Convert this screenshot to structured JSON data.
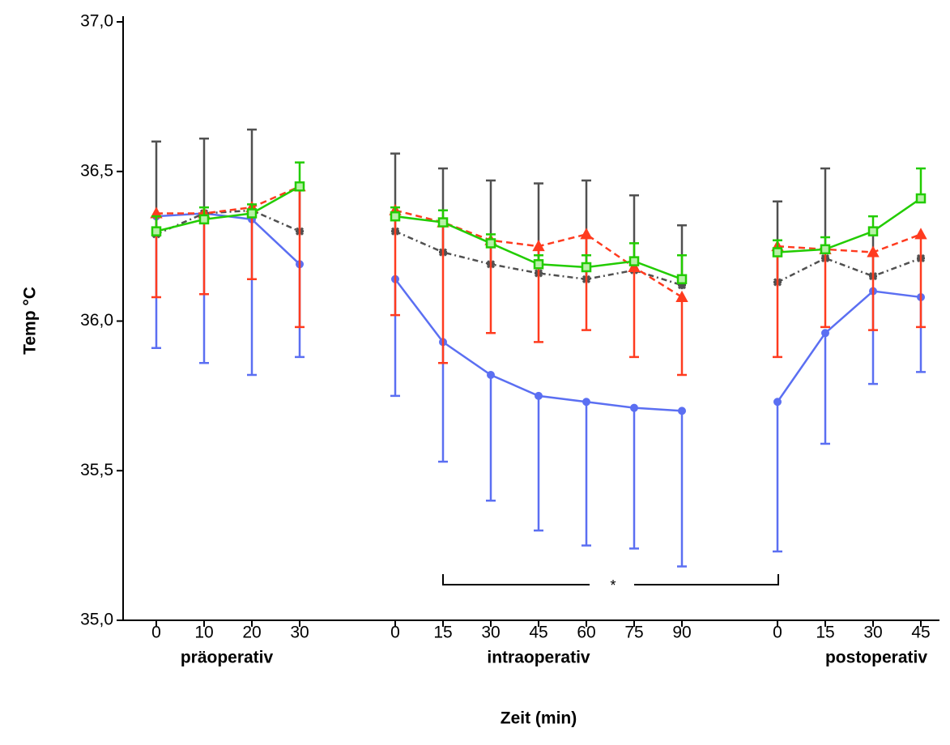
{
  "chart_data": {
    "type": "line",
    "y_label": "Temp °C",
    "x_label": "Zeit (min)",
    "group_labels": [
      "präoperativ",
      "intraoperativ",
      "postoperativ"
    ],
    "annotation": "*",
    "categories": [
      "0",
      "10",
      "20",
      "30",
      null,
      "0",
      "15",
      "30",
      "45",
      "60",
      "75",
      "90",
      null,
      "0",
      "15",
      "30",
      "45"
    ],
    "ylim": [
      35.0,
      37.0
    ],
    "yticks": [
      {
        "value": 35.0,
        "label": "35,0"
      },
      {
        "value": 35.5,
        "label": "35,5"
      },
      {
        "value": 36.0,
        "label": "36,0"
      },
      {
        "value": 36.5,
        "label": "36,5"
      },
      {
        "value": 37.0,
        "label": "37,0"
      }
    ],
    "series": [
      {
        "color": "#5b6ff2",
        "dash": "solid",
        "marker": "circle",
        "error_direction": "down",
        "values": [
          36.35,
          36.36,
          36.34,
          36.19,
          null,
          36.14,
          35.93,
          35.82,
          35.75,
          35.73,
          35.71,
          35.7,
          null,
          35.73,
          35.96,
          36.1,
          36.08
        ],
        "errors": [
          0.44,
          0.5,
          0.52,
          0.31,
          null,
          0.39,
          0.4,
          0.42,
          0.45,
          0.48,
          0.47,
          0.52,
          null,
          0.5,
          0.37,
          0.31,
          0.25
        ]
      },
      {
        "color": "#505050",
        "dash": "dashdot",
        "marker": "star",
        "error_direction": "up",
        "values": [
          36.29,
          36.36,
          36.37,
          36.3,
          null,
          36.3,
          36.23,
          36.19,
          36.16,
          36.14,
          36.17,
          36.12,
          null,
          36.13,
          36.21,
          36.15,
          36.21
        ],
        "errors": [
          0.31,
          0.25,
          0.27,
          0.15,
          null,
          0.26,
          0.28,
          0.28,
          0.3,
          0.33,
          0.25,
          0.2,
          null,
          0.27,
          0.3,
          0.15,
          null
        ]
      },
      {
        "color": "#ff3b1f",
        "dash": "dashed",
        "marker": "triangle",
        "error_direction": "down",
        "values": [
          36.36,
          36.36,
          36.38,
          36.45,
          null,
          36.37,
          36.33,
          36.27,
          36.25,
          36.29,
          36.18,
          36.08,
          null,
          36.25,
          36.24,
          36.23,
          36.29
        ],
        "errors": [
          0.28,
          0.27,
          0.24,
          0.47,
          null,
          0.35,
          0.47,
          0.31,
          0.32,
          0.32,
          0.3,
          0.26,
          null,
          0.37,
          0.26,
          0.26,
          0.31
        ]
      },
      {
        "color": "#22cc00",
        "dash": "solid",
        "marker": "square",
        "error_direction": "up",
        "values": [
          36.3,
          36.34,
          36.36,
          36.45,
          null,
          36.35,
          36.33,
          36.26,
          36.19,
          36.18,
          36.2,
          36.14,
          null,
          36.23,
          36.24,
          36.3,
          36.41
        ],
        "errors": [
          0.05,
          0.04,
          0.03,
          0.08,
          null,
          0.03,
          0.04,
          0.03,
          0.03,
          0.04,
          0.06,
          0.08,
          null,
          0.04,
          0.04,
          0.05,
          0.1
        ]
      }
    ]
  }
}
